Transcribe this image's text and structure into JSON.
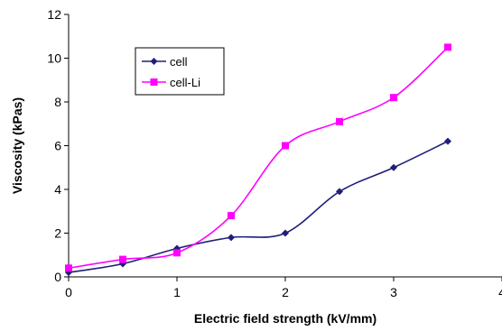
{
  "chart_data": {
    "type": "line",
    "title": "",
    "xlabel": "Electric field strength (kV/mm)",
    "ylabel": "Viscosity (kPas)",
    "xlim": [
      0,
      4
    ],
    "ylim": [
      0,
      12
    ],
    "x_ticks": [
      "0",
      "1",
      "2",
      "3",
      "4"
    ],
    "y_ticks": [
      "0",
      "2",
      "4",
      "6",
      "8",
      "10",
      "12"
    ],
    "grid": false,
    "legend_position": "top-left",
    "series": [
      {
        "name": "cell",
        "color": "#1f1f7a",
        "marker": "diamond",
        "x": [
          0,
          0.5,
          1,
          1.5,
          2,
          2.5,
          3,
          3.5
        ],
        "y": [
          0.2,
          0.6,
          1.3,
          1.8,
          2.0,
          3.9,
          5.0,
          6.2
        ]
      },
      {
        "name": "cell-Li",
        "color": "#ff00ff",
        "marker": "square",
        "x": [
          0,
          0.5,
          1,
          1.5,
          2,
          2.5,
          3,
          3.5
        ],
        "y": [
          0.4,
          0.8,
          1.1,
          2.8,
          6.0,
          7.1,
          8.2,
          10.5
        ]
      }
    ]
  }
}
